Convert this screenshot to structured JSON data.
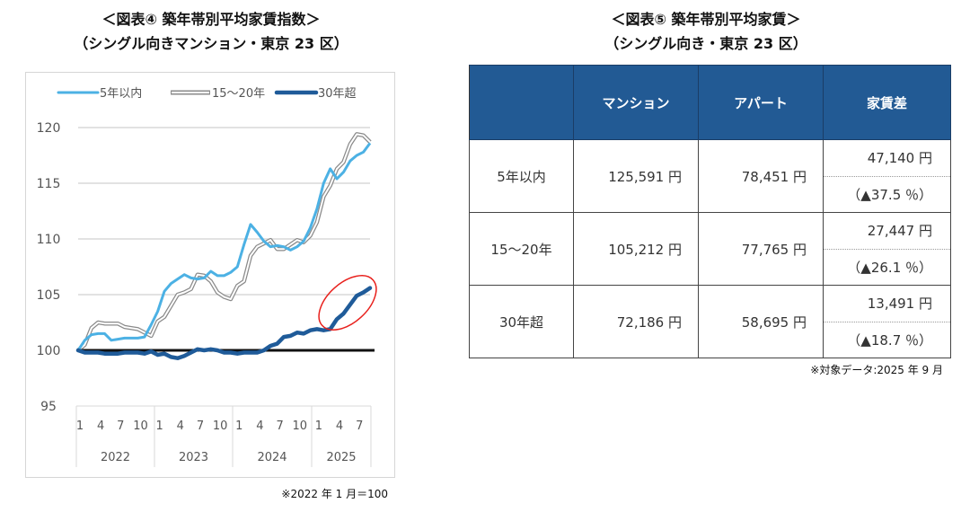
{
  "left": {
    "title": "＜図表④ 築年帯別平均家賃指数＞",
    "subtitle": "（シングル向きマンション・東京 23 区）",
    "note": "※2022 年 1 月＝100"
  },
  "chart_data": {
    "type": "line",
    "title": "＜図表④ 築年帯別平均家賃指数＞",
    "subtitle": "（シングル向きマンション・東京 23 区）",
    "x": [
      "2022-01",
      "2022-02",
      "2022-03",
      "2022-04",
      "2022-05",
      "2022-06",
      "2022-07",
      "2022-08",
      "2022-09",
      "2022-10",
      "2022-11",
      "2022-12",
      "2023-01",
      "2023-02",
      "2023-03",
      "2023-04",
      "2023-05",
      "2023-06",
      "2023-07",
      "2023-08",
      "2023-09",
      "2023-10",
      "2023-11",
      "2023-12",
      "2024-01",
      "2024-02",
      "2024-03",
      "2024-04",
      "2024-05",
      "2024-06",
      "2024-07",
      "2024-08",
      "2024-09",
      "2024-10",
      "2024-11",
      "2024-12",
      "2025-01",
      "2025-02",
      "2025-03",
      "2025-04",
      "2025-05",
      "2025-06",
      "2025-07",
      "2025-08",
      "2025-09"
    ],
    "month_tick_labels": [
      "1",
      "4",
      "7",
      "10",
      "1",
      "4",
      "7",
      "10",
      "1",
      "4",
      "7",
      "10",
      "1",
      "4",
      "7"
    ],
    "year_labels": [
      "2022",
      "2023",
      "2024",
      "2025"
    ],
    "ylim": [
      95,
      120
    ],
    "yticks": [
      "95",
      "100",
      "105",
      "110",
      "115",
      "120"
    ],
    "grid": true,
    "legend": "top",
    "baseline": 100,
    "series": [
      {
        "name": "5年以内",
        "color": "#4cb1e4",
        "style": "solid",
        "values": [
          100,
          100.9,
          101.4,
          101.5,
          101.5,
          100.9,
          101.0,
          101.1,
          101.1,
          101.1,
          101.2,
          102.3,
          103.5,
          105.3,
          106.0,
          106.4,
          106.8,
          106.5,
          106.4,
          106.5,
          107.1,
          106.7,
          106.7,
          107.0,
          107.5,
          109.5,
          111.3,
          110.6,
          109.8,
          109.3,
          109.4,
          109.3,
          109.0,
          109.3,
          109.8,
          111.0,
          112.7,
          115.0,
          116.3,
          115.4,
          116.0,
          117.0,
          117.5,
          117.8,
          118.6
        ]
      },
      {
        "name": "15〜20年",
        "color": "#8a8a8a",
        "style": "double",
        "values": [
          100,
          100.5,
          102.0,
          102.5,
          102.4,
          102.4,
          102.4,
          102.1,
          102.0,
          101.9,
          101.6,
          101.3,
          102.6,
          103.0,
          104.0,
          105.0,
          105.2,
          105.5,
          106.8,
          106.7,
          106.2,
          105.2,
          104.8,
          104.6,
          105.8,
          106.2,
          108.5,
          109.3,
          109.6,
          109.9,
          109.1,
          109.1,
          109.5,
          109.9,
          109.7,
          110.3,
          111.5,
          113.8,
          114.8,
          116.3,
          116.9,
          118.5,
          119.4,
          119.3,
          118.7
        ]
      },
      {
        "name": "30年超",
        "color": "#1f5b99",
        "style": "thick",
        "values": [
          100,
          99.8,
          99.8,
          99.8,
          99.7,
          99.7,
          99.7,
          99.8,
          99.8,
          99.8,
          99.7,
          99.9,
          99.6,
          99.7,
          99.4,
          99.3,
          99.5,
          99.8,
          100.1,
          100.0,
          100.1,
          100.0,
          99.8,
          99.8,
          99.7,
          99.8,
          99.8,
          99.8,
          100.0,
          100.4,
          100.6,
          101.2,
          101.3,
          101.6,
          101.5,
          101.8,
          101.9,
          101.8,
          101.9,
          102.8,
          103.3,
          104.1,
          104.9,
          105.2,
          105.6
        ]
      }
    ],
    "highlight_color": "#e8201c"
  },
  "right": {
    "title": "＜図表⑤ 築年帯別平均家賃＞",
    "subtitle": "（シングル向き・東京 23 区）",
    "headers": [
      "",
      "マンション",
      "アパート",
      "家賃差"
    ],
    "rows": [
      {
        "label": "5年以内",
        "mansion": "125,591 円",
        "apart": "78,451 円",
        "diff": "47,140 円",
        "pct": "（▲37.5 ％）"
      },
      {
        "label": "15～20年",
        "mansion": "105,212 円",
        "apart": "77,765 円",
        "diff": "27,447 円",
        "pct": "（▲26.1 ％）"
      },
      {
        "label": "30年超",
        "mansion": "72,186 円",
        "apart": "58,695 円",
        "diff": "13,491 円",
        "pct": "（▲18.7 ％）"
      }
    ],
    "note": "※対象データ:2025 年 9 月",
    "header_color": "#225a94"
  }
}
